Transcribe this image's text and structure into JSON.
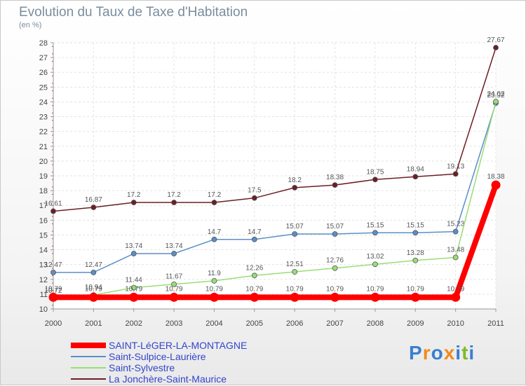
{
  "title": "Evolution du Taux de Taxe d'Habitation",
  "unit": "(en %)",
  "logo": {
    "text": "Proxiti",
    "colors": [
      "#3a7fd0",
      "#f28a1c",
      "#3a7fd0",
      "#f28a1c",
      "#3a7fd0",
      "#7dbb2a",
      "#3a7fd0"
    ]
  },
  "chart_data": {
    "type": "line",
    "title": "Evolution du Taux de Taxe d'Habitation",
    "ylabel": "(en %)",
    "xlabel": "",
    "ylim": [
      10,
      28
    ],
    "yticks": [
      10,
      11,
      12,
      13,
      14,
      15,
      16,
      17,
      18,
      19,
      20,
      21,
      22,
      23,
      24,
      25,
      26,
      27,
      28
    ],
    "x": [
      "2000",
      "2001",
      "2002",
      "2003",
      "2004",
      "2005",
      "2006",
      "2007",
      "2008",
      "2009",
      "2010",
      "2011"
    ],
    "series": [
      {
        "name": "La Jonchère-Saint-Maurice",
        "color": "#6b1f24",
        "values": [
          16.61,
          16.87,
          17.2,
          17.2,
          17.2,
          17.5,
          18.2,
          18.38,
          18.75,
          18.94,
          19.13,
          27.67
        ],
        "labels": [
          "16.61",
          "16.87",
          "17.2",
          "17.2",
          "17.2",
          "17.5",
          "18.2",
          "18.38",
          "18.75",
          "18.94",
          "19.13",
          "27.67"
        ]
      },
      {
        "name": "Saint-Sulpice-Laurière",
        "color": "#5b8fc7",
        "values": [
          12.47,
          12.47,
          13.74,
          13.74,
          14.7,
          14.7,
          15.07,
          15.07,
          15.15,
          15.15,
          15.23,
          23.92
        ],
        "labels": [
          "12.47",
          "12.47",
          "13.74",
          "13.74",
          "14.7",
          "14.7",
          "15.07",
          "15.07",
          "15.15",
          "15.15",
          "15.23",
          "23.92"
        ]
      },
      {
        "name": "Saint-Sylvestre",
        "color": "#99dd77",
        "values": [
          10.72,
          10.94,
          11.44,
          11.67,
          11.9,
          12.26,
          12.51,
          12.76,
          13.02,
          13.28,
          13.48,
          24.02
        ],
        "labels": [
          "10.72",
          "10.94",
          "11.44",
          "11.67",
          "11.9",
          "12.26",
          "12.51",
          "12.76",
          "13.02",
          "13.28",
          "13.48",
          "24.02"
        ]
      },
      {
        "name": "SAINT-LéGER-LA-MONTAGNE",
        "color": "#ff0000",
        "values": [
          10.79,
          10.79,
          10.79,
          10.79,
          10.79,
          10.79,
          10.79,
          10.79,
          10.79,
          10.79,
          10.79,
          18.38
        ],
        "labels": [
          "10.79",
          "10.79",
          "10.79",
          "10.79",
          "10.79",
          "10.79",
          "10.79",
          "10.79",
          "10.79",
          "10.79",
          "10.79",
          "18.38"
        ]
      }
    ],
    "legend": [
      "SAINT-LéGER-LA-MONTAGNE",
      "Saint-Sulpice-Laurière",
      "Saint-Sylvestre",
      "La Jonchère-Saint-Maurice"
    ],
    "legend_position": "bottom-left"
  }
}
